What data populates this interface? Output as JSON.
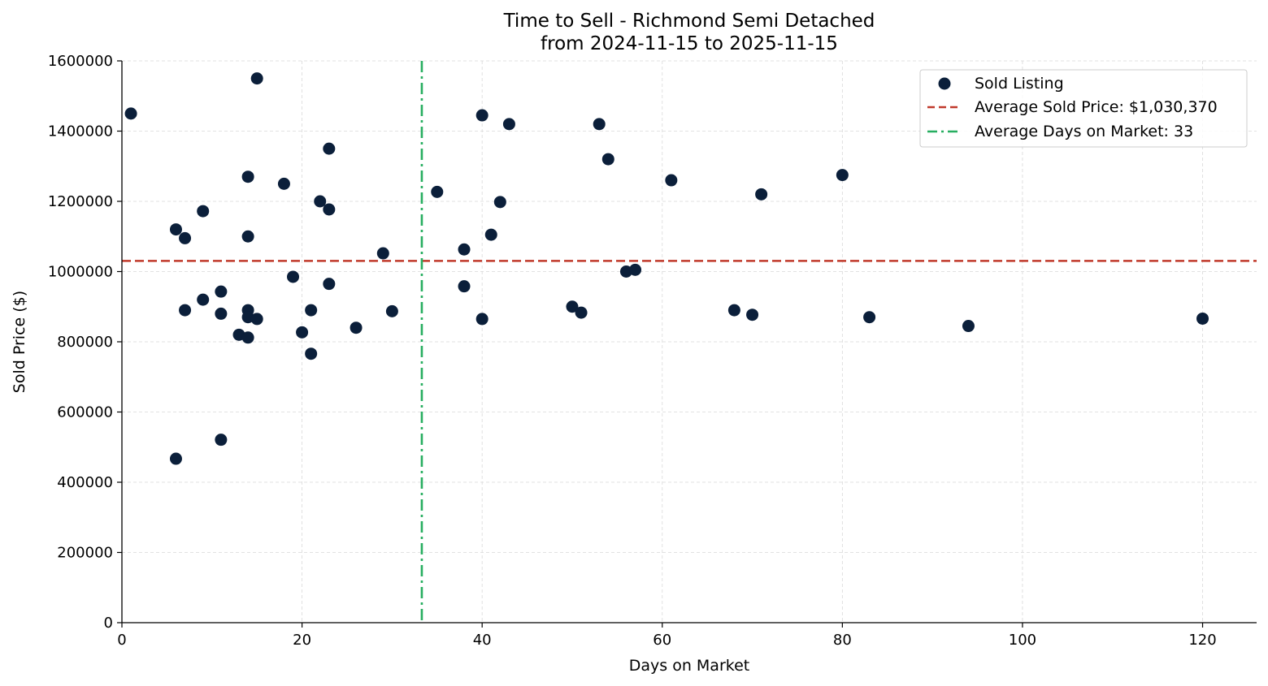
{
  "chart_data": {
    "type": "scatter",
    "title": "Time to Sell - Richmond Semi Detached",
    "subtitle": "from 2024-11-15 to 2025-11-15",
    "xlabel": "Days on Market",
    "ylabel": "Sold Price ($)",
    "xlim": [
      0,
      126
    ],
    "ylim": [
      0,
      1600000
    ],
    "xticks": [
      0,
      20,
      40,
      60,
      80,
      100,
      120
    ],
    "yticks": [
      0,
      200000,
      400000,
      600000,
      800000,
      1000000,
      1200000,
      1400000,
      1600000
    ],
    "grid": true,
    "legend_position": "top-right",
    "series": [
      {
        "name": "Sold Listing",
        "color": "#0b1f3a",
        "x": [
          1,
          6,
          6,
          7,
          7,
          9,
          9,
          11,
          11,
          11,
          13,
          14,
          14,
          14,
          14,
          14,
          15,
          15,
          18,
          19,
          20,
          21,
          21,
          22,
          23,
          23,
          23,
          26,
          29,
          30,
          35,
          38,
          38,
          40,
          40,
          41,
          42,
          43,
          50,
          51,
          53,
          54,
          56,
          57,
          61,
          68,
          70,
          71,
          80,
          83,
          94,
          120
        ],
        "y": [
          1450000,
          1120000,
          467000,
          1095000,
          890000,
          1172000,
          920000,
          943000,
          880000,
          521000,
          820000,
          1270000,
          1100000,
          890000,
          870000,
          812000,
          1550000,
          865000,
          1250000,
          985000,
          827000,
          890000,
          766000,
          1200000,
          1350000,
          1177000,
          965000,
          840000,
          1052000,
          887000,
          1227000,
          1063000,
          958000,
          1445000,
          865000,
          1105000,
          1198000,
          1420000,
          900000,
          883000,
          1420000,
          1320000,
          1000000,
          1005000,
          1260000,
          890000,
          877000,
          1220000,
          1275000,
          870000,
          845000,
          866000
        ]
      }
    ],
    "reference_lines": [
      {
        "name": "Average Sold Price: $1,030,370",
        "orientation": "horizontal",
        "value": 1030370,
        "color": "#c0392b",
        "style": "dashed"
      },
      {
        "name": "Average Days on Market: 33",
        "orientation": "vertical",
        "value": 33.3,
        "color": "#27ae60",
        "style": "dashdot"
      }
    ]
  }
}
